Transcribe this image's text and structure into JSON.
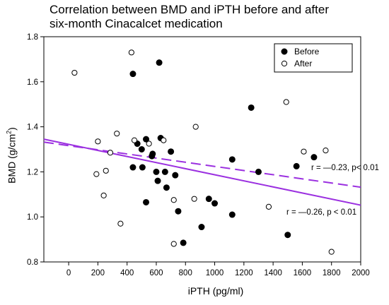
{
  "chart_data": {
    "type": "scatter",
    "title_lines": [
      "Correlation between BMD and iPTH before and after",
      "six-month Cinacalcet medication"
    ],
    "xlabel": "iPTH (pg/ml)",
    "ylabel_main": "BMD (g/cm",
    "ylabel_sup": "2",
    "ylabel_end": ")",
    "xlim": [
      -170,
      2000
    ],
    "ylim": [
      0.8,
      1.8
    ],
    "x_ticks": [
      0,
      200,
      400,
      600,
      800,
      1000,
      1200,
      1400,
      1600,
      1800,
      2000
    ],
    "y_ticks": [
      0.8,
      1.0,
      1.2,
      1.4,
      1.6,
      1.8
    ],
    "x_tick_labels": [
      "0",
      "200",
      "400",
      "600",
      "800",
      "1000",
      "1200",
      "1400",
      "1600",
      "1800",
      "2000"
    ],
    "y_tick_labels": [
      "0.8",
      "1.0",
      "1.2",
      "1.4",
      "1.6",
      "1.8"
    ],
    "grid": false,
    "legend_position": "top-right",
    "series": [
      {
        "name": "Before",
        "marker": "filled-circle",
        "color": "#000000",
        "points": [
          [
            440,
            1.635
          ],
          [
            620,
            1.685
          ],
          [
            1250,
            1.485
          ],
          [
            470,
            1.325
          ],
          [
            500,
            1.3
          ],
          [
            530,
            1.345
          ],
          [
            630,
            1.35
          ],
          [
            575,
            1.28
          ],
          [
            570,
            1.27
          ],
          [
            700,
            1.29
          ],
          [
            440,
            1.22
          ],
          [
            505,
            1.22
          ],
          [
            600,
            1.2
          ],
          [
            660,
            1.2
          ],
          [
            730,
            1.185
          ],
          [
            610,
            1.16
          ],
          [
            670,
            1.13
          ],
          [
            530,
            1.065
          ],
          [
            750,
            1.025
          ],
          [
            960,
            1.08
          ],
          [
            1000,
            1.06
          ],
          [
            1120,
            1.255
          ],
          [
            1300,
            1.2
          ],
          [
            1560,
            1.225
          ],
          [
            1680,
            1.265
          ],
          [
            1120,
            1.01
          ],
          [
            910,
            0.955
          ],
          [
            785,
            0.885
          ],
          [
            1500,
            0.92
          ]
        ]
      },
      {
        "name": "After",
        "marker": "open-circle",
        "color": "#000000",
        "points": [
          [
            40,
            1.64
          ],
          [
            430,
            1.73
          ],
          [
            1490,
            1.51
          ],
          [
            870,
            1.4
          ],
          [
            330,
            1.37
          ],
          [
            450,
            1.34
          ],
          [
            550,
            1.325
          ],
          [
            650,
            1.34
          ],
          [
            200,
            1.335
          ],
          [
            285,
            1.285
          ],
          [
            1610,
            1.29
          ],
          [
            1760,
            1.295
          ],
          [
            190,
            1.19
          ],
          [
            255,
            1.205
          ],
          [
            240,
            1.095
          ],
          [
            355,
            0.97
          ],
          [
            720,
            1.075
          ],
          [
            860,
            1.08
          ],
          [
            1370,
            1.045
          ],
          [
            720,
            0.88
          ],
          [
            1800,
            0.845
          ]
        ]
      }
    ],
    "trend_lines": [
      {
        "label": "r = —0.26, p < 0.01",
        "style": "solid",
        "color": "#9b30e0",
        "from": [
          -170,
          1.345
        ],
        "to": [
          2000,
          1.052
        ]
      },
      {
        "label": "r = —0.23, p< 0.01",
        "style": "dashed",
        "color": "#9b30e0",
        "from": [
          -170,
          1.332
        ],
        "to": [
          2000,
          1.132
        ]
      }
    ]
  }
}
